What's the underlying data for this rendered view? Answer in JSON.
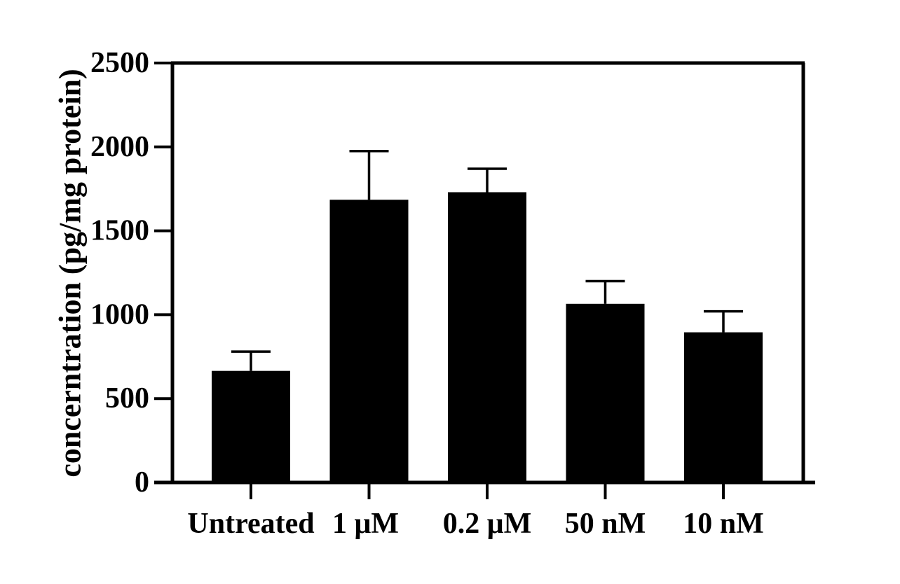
{
  "chart_data": {
    "type": "bar",
    "title": "",
    "xlabel": "",
    "ylabel": "concerntration (pg/mg protein)",
    "ylim": [
      0,
      2500
    ],
    "yticks": [
      0,
      500,
      1000,
      1500,
      2000,
      2500
    ],
    "categories": [
      "Untreated",
      "1 μM",
      "0.2 μM",
      "50 nM",
      "10 nM"
    ],
    "values": [
      665,
      1685,
      1730,
      1065,
      895
    ],
    "error_upper": [
      780,
      1975,
      1870,
      1200,
      1020
    ],
    "grid": false,
    "legend": "none",
    "bar_color": "#000000"
  }
}
